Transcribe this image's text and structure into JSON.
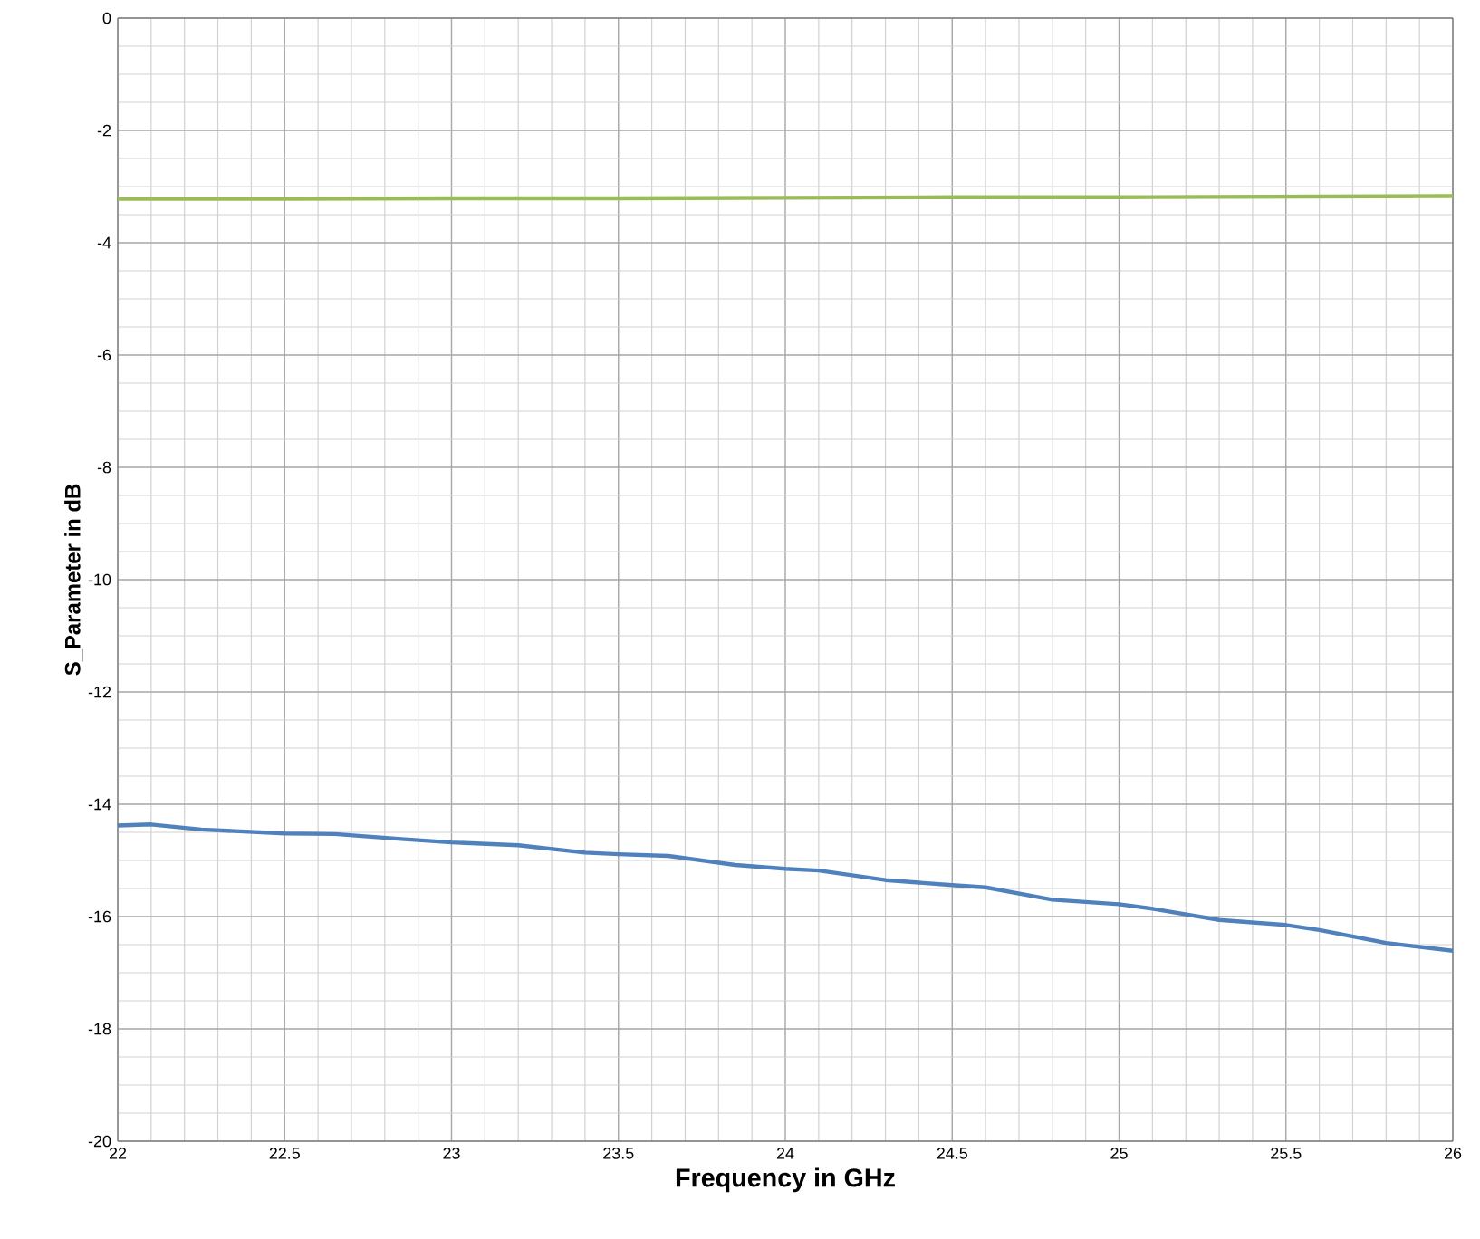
{
  "chart_data": {
    "type": "line",
    "xlabel": "Frequency in GHz",
    "ylabel": "S_Parameter in dB",
    "xlim": [
      22,
      26
    ],
    "ylim": [
      -20,
      0
    ],
    "xticks": [
      22,
      22.5,
      23,
      23.5,
      24,
      24.5,
      25,
      25.5,
      26
    ],
    "yticks": [
      -20,
      -18,
      -16,
      -14,
      -12,
      -10,
      -8,
      -6,
      -4,
      -2,
      0
    ],
    "grid": true,
    "marker": "none",
    "line_style": "solid",
    "series": [
      {
        "color": "#9bbb59",
        "x": [
          22,
          22.5,
          23,
          23.5,
          24,
          24.5,
          25,
          25.5,
          26
        ],
        "values": [
          -3.22,
          -3.22,
          -3.21,
          -3.21,
          -3.2,
          -3.19,
          -3.19,
          -3.18,
          -3.17
        ]
      },
      {
        "color": "#4f81bd",
        "x": [
          22,
          22.1,
          22.25,
          22.5,
          22.65,
          22.85,
          23,
          23.2,
          23.4,
          23.5,
          23.65,
          23.85,
          24,
          24.1,
          24.3,
          24.5,
          24.6,
          24.8,
          25,
          25.1,
          25.3,
          25.5,
          25.6,
          25.8,
          26
        ],
        "values": [
          -14.38,
          -14.36,
          -14.45,
          -14.52,
          -14.53,
          -14.62,
          -14.68,
          -14.73,
          -14.86,
          -14.89,
          -14.92,
          -15.08,
          -15.15,
          -15.18,
          -15.35,
          -15.44,
          -15.48,
          -15.7,
          -15.78,
          -15.86,
          -16.06,
          -16.15,
          -16.24,
          -16.47,
          -16.61
        ]
      }
    ]
  }
}
